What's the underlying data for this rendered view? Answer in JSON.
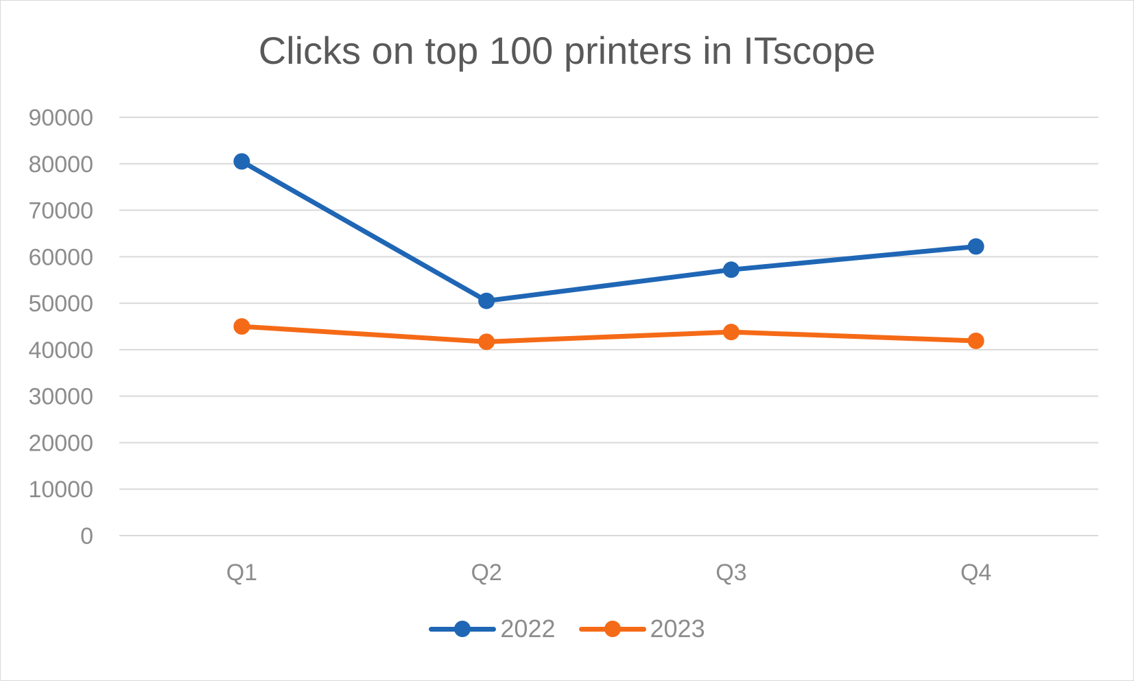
{
  "chart_data": {
    "type": "line",
    "title": "Clicks on top 100 printers in ITscope",
    "xlabel": "",
    "ylabel": "",
    "categories": [
      "Q1",
      "Q2",
      "Q3",
      "Q4"
    ],
    "ylim": [
      0,
      90000
    ],
    "yticks": [
      0,
      10000,
      20000,
      30000,
      40000,
      50000,
      60000,
      70000,
      80000,
      90000
    ],
    "grid": true,
    "legend_position": "bottom",
    "series": [
      {
        "name": "2022",
        "color": "#1f66b5",
        "values": [
          80500,
          50500,
          57200,
          62200
        ]
      },
      {
        "name": "2023",
        "color": "#f56a16",
        "values": [
          45000,
          41700,
          43800,
          41900
        ]
      }
    ]
  }
}
